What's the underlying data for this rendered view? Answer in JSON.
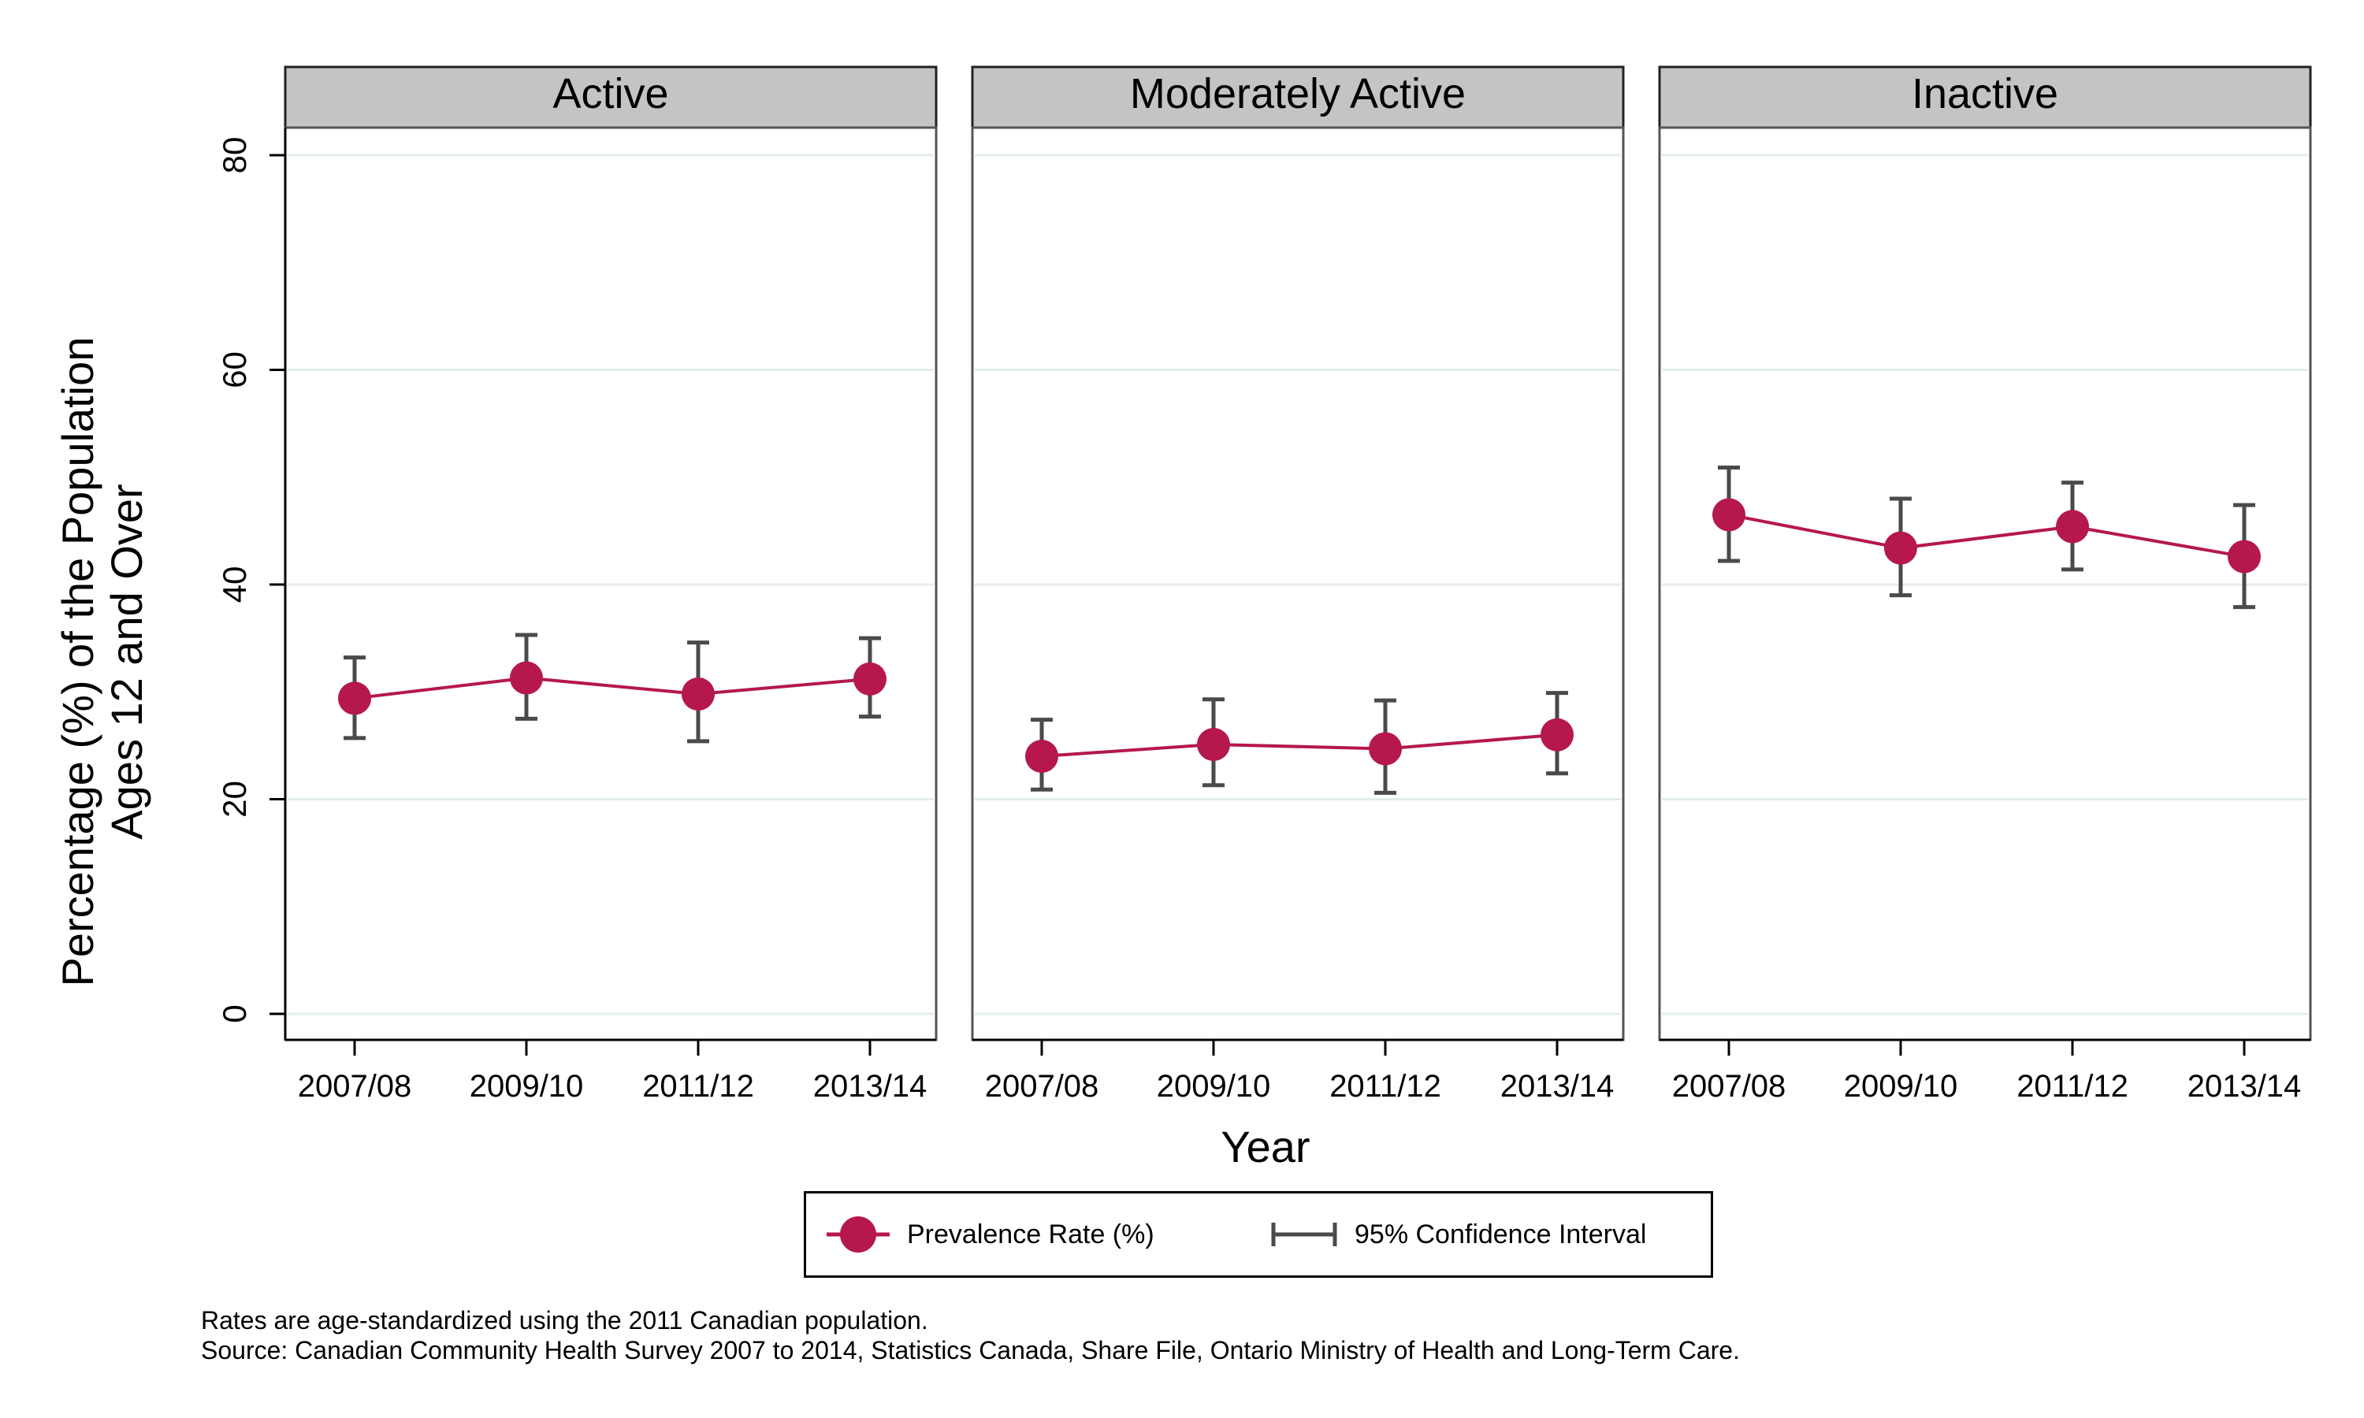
{
  "chart_data": {
    "type": "line",
    "ylabel_line1": "Percentage (%) of the Population",
    "ylabel_line2": "Ages 12 and Over",
    "xlabel": "Year",
    "ylim": [
      0,
      80
    ],
    "yticks": [
      0,
      20,
      40,
      60,
      80
    ],
    "categories": [
      "2007/08",
      "2009/10",
      "2011/12",
      "2013/14"
    ],
    "grid": true,
    "legend_position": "bottom",
    "series_color": "#b5174e",
    "ci_color": "#4a4a4a",
    "panels": [
      {
        "title": "Active",
        "values": [
          29.4,
          31.3,
          29.8,
          31.2
        ],
        "ci_low": [
          25.7,
          27.5,
          25.4,
          27.7
        ],
        "ci_high": [
          33.2,
          35.3,
          34.6,
          35.0
        ]
      },
      {
        "title": "Moderately Active",
        "values": [
          24.0,
          25.1,
          24.7,
          26.0
        ],
        "ci_low": [
          20.9,
          21.3,
          20.6,
          22.4
        ],
        "ci_high": [
          27.4,
          29.3,
          29.2,
          29.9
        ]
      },
      {
        "title": "Inactive",
        "values": [
          46.5,
          43.4,
          45.4,
          42.6
        ],
        "ci_low": [
          42.2,
          39.0,
          41.4,
          37.9
        ],
        "ci_high": [
          50.9,
          48.0,
          49.5,
          47.4
        ]
      }
    ],
    "legend": {
      "series_label": "Prevalence Rate (%)",
      "ci_label": "95% Confidence Interval"
    }
  },
  "notes": {
    "line1": "Rates are age-standardized using the 2011 Canadian population.",
    "line2": "Source: Canadian Community Health Survey 2007 to 2014, Statistics Canada, Share File, Ontario Ministry of Health and Long-Term Care."
  }
}
